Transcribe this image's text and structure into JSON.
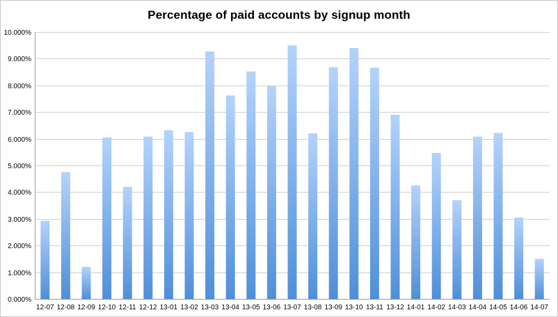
{
  "chart_data": {
    "type": "bar",
    "title": "Percentage of paid accounts by signup month",
    "xlabel": "",
    "ylabel": "",
    "ylim": [
      0,
      10
    ],
    "y_tick_values": [
      0,
      1,
      2,
      3,
      4,
      5,
      6,
      7,
      8,
      9,
      10
    ],
    "y_tick_labels": [
      "0.000%",
      "1.000%",
      "2.000%",
      "3.000%",
      "4.000%",
      "5.000%",
      "6.000%",
      "7.000%",
      "8.000%",
      "9.000%",
      "10.000%"
    ],
    "grid": true,
    "legend": "none",
    "categories": [
      "12-07",
      "12-08",
      "12-09",
      "12-10",
      "12-11",
      "12-12",
      "13-01",
      "13-02",
      "13-03",
      "13-04",
      "13-05",
      "13-06",
      "13-07",
      "13-08",
      "13-09",
      "13-10",
      "13-11",
      "13-12",
      "14-01",
      "14-02",
      "14-03",
      "14-04",
      "14-05",
      "14-06",
      "14-07"
    ],
    "values": [
      2.93,
      4.75,
      1.2,
      6.05,
      4.2,
      6.08,
      6.32,
      6.25,
      9.27,
      7.62,
      8.52,
      7.98,
      9.5,
      6.2,
      8.68,
      9.4,
      8.66,
      6.9,
      4.25,
      5.47,
      3.7,
      6.08,
      6.22,
      3.05,
      1.5
    ],
    "colors": {
      "bar_top": "#b4d3fb",
      "bar_bottom": "#4f8fd9",
      "grid": "#d0d0d0",
      "axis": "#9a9a9a"
    }
  }
}
